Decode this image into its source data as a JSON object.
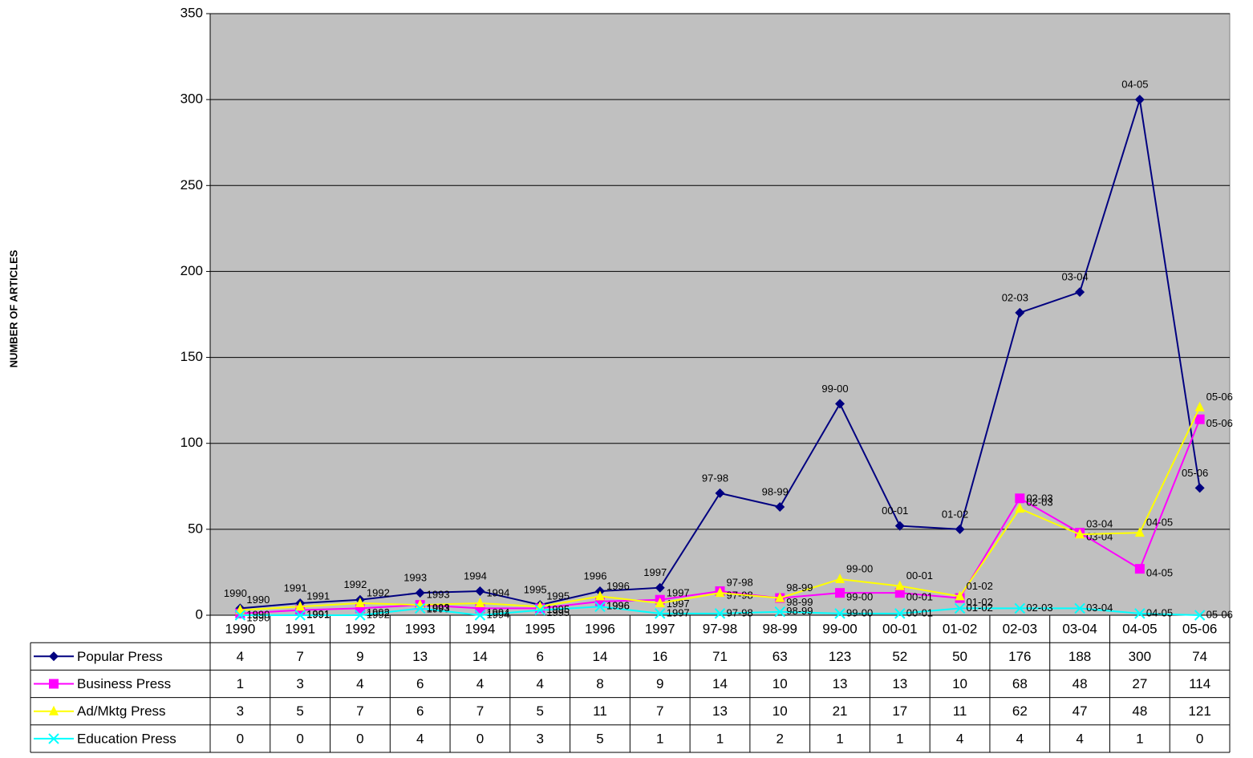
{
  "chart_data": {
    "type": "line",
    "y_label": "NUMBER OF ARTICLES",
    "categories": [
      "1990",
      "1991",
      "1992",
      "1993",
      "1994",
      "1995",
      "1996",
      "1997",
      "97-98",
      "98-99",
      "99-00",
      "00-01",
      "01-02",
      "02-03",
      "03-04",
      "04-05",
      "05-06"
    ],
    "series": [
      {
        "name": "Popular Press",
        "color": "#000080",
        "marker": "diamond",
        "values": [
          4,
          7,
          9,
          13,
          14,
          6,
          14,
          16,
          71,
          63,
          123,
          52,
          50,
          176,
          188,
          300,
          74
        ]
      },
      {
        "name": "Business Press",
        "color": "#ff00ff",
        "marker": "square",
        "values": [
          1,
          3,
          4,
          6,
          4,
          4,
          8,
          9,
          14,
          10,
          13,
          13,
          10,
          68,
          48,
          27,
          114
        ]
      },
      {
        "name": "Ad/Mktg Press",
        "color": "#ffff00",
        "marker": "triangle",
        "values": [
          3,
          5,
          7,
          6,
          7,
          5,
          11,
          7,
          13,
          10,
          21,
          17,
          11,
          62,
          47,
          48,
          121
        ]
      },
      {
        "name": "Education Press",
        "color": "#00ffff",
        "marker": "x",
        "values": [
          0,
          0,
          0,
          4,
          0,
          3,
          5,
          1,
          1,
          2,
          1,
          1,
          4,
          4,
          4,
          1,
          0
        ]
      }
    ],
    "ylim": [
      0,
      350
    ],
    "yticks": [
      0,
      50,
      100,
      150,
      200,
      250,
      300,
      350
    ],
    "grid": true,
    "plot_background": "#c0c0c0"
  }
}
